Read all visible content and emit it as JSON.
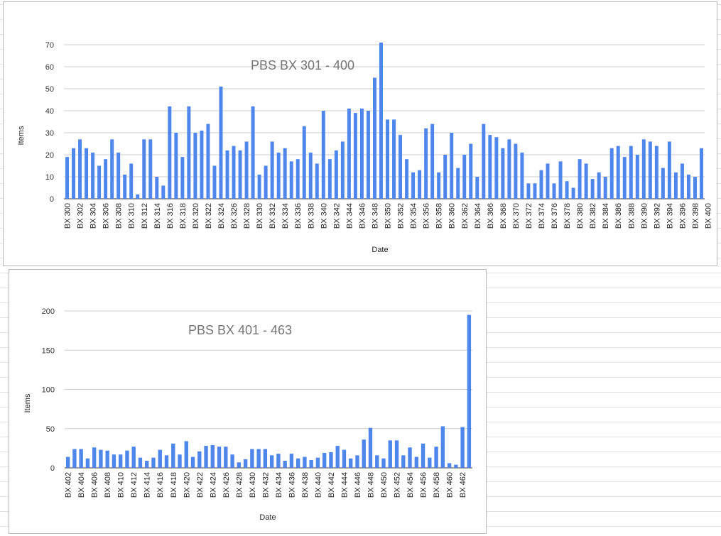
{
  "colors": {
    "bar": "#4f86ec",
    "grid": "#cccccc",
    "axis": "#333333",
    "title": "#757575"
  },
  "chart_data": [
    {
      "type": "bar",
      "title": "PBS BX 301 - 400",
      "xlabel": "Date",
      "ylabel": "Items",
      "ylim": [
        0,
        70
      ],
      "yticks": [
        0,
        10,
        20,
        30,
        40,
        50,
        60,
        70
      ],
      "grid": true,
      "legend": "none",
      "tick_labels": [
        "BX 300",
        "BX 302",
        "BX 304",
        "BX 306",
        "BX 308",
        "BX 310",
        "BX 312",
        "BX 314",
        "BX 316",
        "BX 318",
        "BX 320",
        "BX 322",
        "BX 324",
        "BX 326",
        "BX 328",
        "BX 330",
        "BX 332",
        "BX 334",
        "BX 336",
        "BX 338",
        "BX 340",
        "BX 342",
        "BX 344",
        "BX 346",
        "BX 348",
        "BX 350",
        "BX 352",
        "BX 354",
        "BX 356",
        "BX 358",
        "BX 360",
        "BX 362",
        "BX 364",
        "BX 366",
        "BX 368",
        "BX 370",
        "BX 372",
        "BX 374",
        "BX 376",
        "BX 378",
        "BX 380",
        "BX 382",
        "BX 384",
        "BX 386",
        "BX 388",
        "BX 390",
        "BX 392",
        "BX 394",
        "BX 396",
        "BX 398",
        "BX 400"
      ],
      "values": [
        19,
        23,
        27,
        23,
        21,
        15,
        18,
        27,
        21,
        11,
        16,
        2,
        27,
        27,
        10,
        6,
        42,
        30,
        19,
        42,
        30,
        31,
        34,
        15,
        51,
        22,
        24,
        22,
        26,
        42,
        11,
        15,
        26,
        21,
        23,
        17,
        18,
        33,
        21,
        16,
        40,
        18,
        22,
        26,
        41,
        39,
        41,
        40,
        55,
        71,
        36,
        36,
        29,
        18,
        12,
        13,
        32,
        34,
        12,
        20,
        30,
        14,
        20,
        25,
        10,
        34,
        29,
        28,
        23,
        27,
        25,
        21,
        7,
        7,
        13,
        16,
        7,
        17,
        8,
        5,
        18,
        16,
        9,
        12,
        10,
        23,
        24,
        19,
        24,
        20,
        27,
        26,
        24,
        14,
        26,
        12,
        16,
        11,
        10,
        23
      ]
    },
    {
      "type": "bar",
      "title": "PBS BX 401 - 463",
      "xlabel": "Date",
      "ylabel": "Items",
      "ylim": [
        0,
        200
      ],
      "yticks": [
        0,
        50,
        100,
        150,
        200
      ],
      "grid": true,
      "legend": "none",
      "tick_labels": [
        "BX 402",
        "BX 404",
        "BX 406",
        "BX 408",
        "BX 410",
        "BX 412",
        "BX 414",
        "BX 416",
        "BX 418",
        "BX 420",
        "BX 422",
        "BX 424",
        "BX 426",
        "BX 428",
        "BX 430",
        "BX 432",
        "BX 434",
        "BX 436",
        "BX 438",
        "BX 440",
        "BX 442",
        "BX 444",
        "BX 446",
        "BX 448",
        "BX 450",
        "BX 452",
        "BX 454",
        "BX 456",
        "BX 458",
        "BX 460",
        "BX 462"
      ],
      "values": [
        14,
        24,
        24,
        12,
        26,
        23,
        22,
        17,
        17,
        22,
        27,
        13,
        9,
        13,
        23,
        16,
        31,
        17,
        34,
        14,
        21,
        28,
        29,
        27,
        27,
        17,
        7,
        11,
        24,
        24,
        24,
        16,
        18,
        9,
        18,
        12,
        14,
        10,
        13,
        19,
        20,
        28,
        23,
        12,
        16,
        36,
        51,
        16,
        12,
        35,
        35,
        16,
        26,
        14,
        31,
        13,
        27,
        53,
        6,
        4,
        52,
        195
      ]
    }
  ]
}
